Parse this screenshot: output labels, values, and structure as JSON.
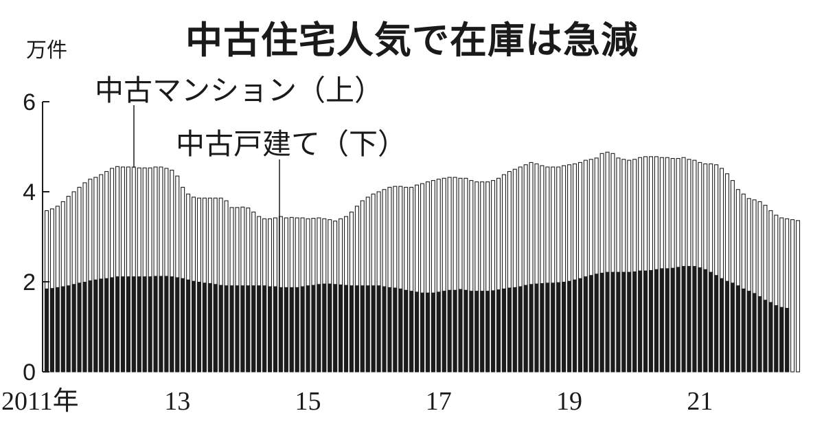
{
  "chart_data": {
    "type": "bar",
    "title": "中古住宅人気で在庫は急減",
    "unit": "万件",
    "ylim": [
      0,
      6
    ],
    "y_ticks": [
      0,
      2,
      4,
      6
    ],
    "x_tick_labels": [
      "2011年",
      "13",
      "15",
      "17",
      "19",
      "21"
    ],
    "x_tick_positions": [
      0,
      24,
      48,
      72,
      96,
      120
    ],
    "series": [
      {
        "name": "中古マンション（上）",
        "values": [
          3.58,
          3.62,
          3.68,
          3.78,
          3.9,
          4.0,
          4.1,
          4.2,
          4.28,
          4.32,
          4.38,
          4.45,
          4.52,
          4.56,
          4.55,
          4.55,
          4.55,
          4.53,
          4.53,
          4.53,
          4.55,
          4.55,
          4.52,
          4.48,
          4.35,
          4.1,
          3.95,
          3.88,
          3.86,
          3.86,
          3.86,
          3.86,
          3.86,
          3.8,
          3.65,
          3.65,
          3.66,
          3.64,
          3.55,
          3.45,
          3.4,
          3.4,
          3.42,
          3.45,
          3.42,
          3.43,
          3.42,
          3.42,
          3.4,
          3.41,
          3.42,
          3.4,
          3.38,
          3.35,
          3.4,
          3.45,
          3.55,
          3.68,
          3.8,
          3.88,
          3.95,
          4.0,
          4.05,
          4.1,
          4.12,
          4.12,
          4.1,
          4.1,
          4.15,
          4.18,
          4.22,
          4.25,
          4.28,
          4.3,
          4.32,
          4.32,
          4.3,
          4.3,
          4.25,
          4.22,
          4.22,
          4.22,
          4.25,
          4.3,
          4.38,
          4.45,
          4.5,
          4.55,
          4.6,
          4.65,
          4.62,
          4.58,
          4.55,
          4.55,
          4.55,
          4.58,
          4.6,
          4.62,
          4.65,
          4.7,
          4.72,
          4.75,
          4.85,
          4.88,
          4.85,
          4.75,
          4.72,
          4.7,
          4.72,
          4.76,
          4.78,
          4.78,
          4.78,
          4.76,
          4.76,
          4.74,
          4.74,
          4.76,
          4.72,
          4.7,
          4.65,
          4.62,
          4.62,
          4.6,
          4.52,
          4.4,
          4.25,
          4.05,
          3.95,
          3.85,
          3.82,
          3.78,
          3.7,
          3.58,
          3.48,
          3.42,
          3.4,
          3.38,
          3.36
        ]
      },
      {
        "name": "中古戸建て（下）",
        "values": [
          1.85,
          1.86,
          1.88,
          1.9,
          1.92,
          1.95,
          1.98,
          2.0,
          2.03,
          2.05,
          2.07,
          2.08,
          2.1,
          2.12,
          2.12,
          2.12,
          2.12,
          2.12,
          2.12,
          2.12,
          2.13,
          2.13,
          2.13,
          2.12,
          2.1,
          2.08,
          2.05,
          2.02,
          2.0,
          1.98,
          1.97,
          1.95,
          1.93,
          1.92,
          1.92,
          1.92,
          1.92,
          1.92,
          1.92,
          1.92,
          1.92,
          1.9,
          1.9,
          1.88,
          1.88,
          1.88,
          1.88,
          1.9,
          1.92,
          1.93,
          1.95,
          1.96,
          1.96,
          1.95,
          1.94,
          1.93,
          1.92,
          1.92,
          1.92,
          1.92,
          1.92,
          1.92,
          1.9,
          1.88,
          1.87,
          1.85,
          1.82,
          1.8,
          1.78,
          1.76,
          1.76,
          1.76,
          1.78,
          1.8,
          1.82,
          1.82,
          1.84,
          1.82,
          1.8,
          1.8,
          1.8,
          1.8,
          1.81,
          1.83,
          1.85,
          1.87,
          1.88,
          1.9,
          1.93,
          1.95,
          1.96,
          1.97,
          1.98,
          1.98,
          1.99,
          2.0,
          2.02,
          2.05,
          2.08,
          2.12,
          2.15,
          2.18,
          2.2,
          2.22,
          2.22,
          2.22,
          2.22,
          2.22,
          2.23,
          2.25,
          2.25,
          2.26,
          2.28,
          2.3,
          2.3,
          2.31,
          2.33,
          2.35,
          2.35,
          2.35,
          2.32,
          2.28,
          2.22,
          2.15,
          2.08,
          2.02,
          1.98,
          1.92,
          1.85,
          1.8,
          1.75,
          1.68,
          1.6,
          1.55,
          1.48,
          1.44,
          1.42
        ]
      }
    ],
    "colors": {
      "bar_upper": "#ffffff",
      "bar_lower": "#1c1c1c",
      "stroke": "#1c1c1c"
    }
  }
}
